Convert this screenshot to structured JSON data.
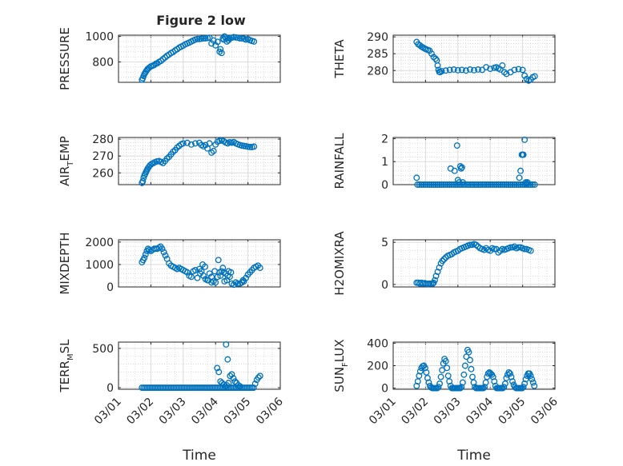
{
  "figure": {
    "title": "Figure 2 low",
    "marker_color": "#0072BD",
    "grid": "on"
  },
  "chart_data": [
    {
      "type": "scatter",
      "ylabel": "PRESSURE",
      "ylim": [
        640,
        1010
      ],
      "yticks": [
        800,
        1000
      ],
      "xlim": [
        0,
        4
      ],
      "xticks": [
        "03/01",
        "03/02",
        "03/03",
        "03/04",
        "03/05",
        "03/06"
      ],
      "xticks_visible": false,
      "minor_grid": true,
      "x": [
        0.58,
        0.6,
        0.62,
        0.64,
        0.66,
        0.68,
        0.7,
        0.72,
        0.76,
        0.8,
        0.84,
        0.88,
        0.92,
        0.96,
        1.0,
        1.05,
        1.1,
        1.15,
        1.2,
        1.25,
        1.3,
        1.35,
        1.4,
        1.45,
        1.5,
        1.55,
        1.6,
        1.65,
        1.7,
        1.75,
        1.8,
        1.85,
        1.9,
        1.95,
        2.0,
        2.05,
        2.1,
        2.15,
        2.2,
        2.25,
        2.3,
        2.35,
        2.4,
        2.45,
        2.5,
        2.52,
        2.55,
        2.58,
        2.6,
        2.62,
        2.65,
        2.68,
        2.7,
        2.72,
        2.75,
        2.8,
        2.85,
        2.9,
        2.95,
        3.0,
        3.05,
        3.1,
        3.15,
        3.2,
        3.25,
        3.3,
        3.35
      ],
      "y": [
        660,
        672,
        690,
        705,
        715,
        725,
        735,
        745,
        755,
        765,
        770,
        775,
        785,
        790,
        800,
        808,
        822,
        835,
        848,
        858,
        870,
        878,
        890,
        900,
        912,
        920,
        928,
        938,
        945,
        952,
        960,
        968,
        975,
        980,
        980,
        982,
        985,
        985,
        988,
        990,
        945,
        968,
        930,
        958,
        880,
        900,
        870,
        985,
        975,
        1000,
        990,
        960,
        985,
        970,
        985,
        990,
        995,
        992,
        990,
        985,
        985,
        982,
        975,
        980,
        970,
        965,
        960
      ]
    },
    {
      "type": "scatter",
      "ylabel": "THETA",
      "ylim": [
        276.5,
        290.5
      ],
      "yticks": [
        280,
        285,
        290
      ],
      "xlim": [
        0,
        4
      ],
      "xticks": [
        "03/01",
        "03/02",
        "03/03",
        "03/04",
        "03/05",
        "03/06"
      ],
      "xticks_visible": false,
      "minor_grid": true,
      "x": [
        0.58,
        0.62,
        0.66,
        0.7,
        0.74,
        0.78,
        0.82,
        0.86,
        0.9,
        0.95,
        1.0,
        1.05,
        1.08,
        1.1,
        1.12,
        1.14,
        1.16,
        1.2,
        1.3,
        1.4,
        1.5,
        1.6,
        1.7,
        1.8,
        1.9,
        2.0,
        2.1,
        2.2,
        2.3,
        2.4,
        2.5,
        2.55,
        2.6,
        2.65,
        2.7,
        2.75,
        2.8,
        2.9,
        3.0,
        3.1,
        3.2,
        3.25,
        3.3,
        3.35,
        3.4,
        3.45,
        3.5
      ],
      "y": [
        288.5,
        287.8,
        287.5,
        287.1,
        286.8,
        286.5,
        286.3,
        286.1,
        285.9,
        285.0,
        284.0,
        283.5,
        283.0,
        281.5,
        280.2,
        279.6,
        279.5,
        279.8,
        280.0,
        280.2,
        280.3,
        280.1,
        280.2,
        280.0,
        280.3,
        280.1,
        280.3,
        280.2,
        281.0,
        280.5,
        280.8,
        281.0,
        280.6,
        280.3,
        281.5,
        279.5,
        279.0,
        279.5,
        280.2,
        280.4,
        280.2,
        278.5,
        277.5,
        277.0,
        277.3,
        278.0,
        278.3
      ]
    },
    {
      "type": "scatter",
      "ylabel": "AIR_TEMP",
      "ylabel_parts": [
        "AIR",
        "T",
        "EMP"
      ],
      "ylim": [
        253,
        281
      ],
      "yticks": [
        260,
        270,
        280
      ],
      "xlim": [
        0,
        4
      ],
      "xticks": [
        "03/01",
        "03/02",
        "03/03",
        "03/04",
        "03/05",
        "03/06"
      ],
      "xticks_visible": false,
      "minor_grid": true,
      "x": [
        0.58,
        0.6,
        0.62,
        0.64,
        0.66,
        0.68,
        0.7,
        0.72,
        0.75,
        0.78,
        0.82,
        0.86,
        0.9,
        0.95,
        1.0,
        1.05,
        1.1,
        1.15,
        1.2,
        1.25,
        1.3,
        1.35,
        1.4,
        1.45,
        1.5,
        1.55,
        1.6,
        1.7,
        1.8,
        1.9,
        2.0,
        2.05,
        2.1,
        2.15,
        2.2,
        2.25,
        2.3,
        2.35,
        2.4,
        2.45,
        2.5,
        2.55,
        2.6,
        2.65,
        2.7,
        2.75,
        2.8,
        2.85,
        2.9,
        2.95,
        3.0,
        3.05,
        3.1,
        3.15,
        3.2,
        3.25,
        3.3,
        3.35
      ],
      "y": [
        254,
        255,
        257,
        258.5,
        259.5,
        260.5,
        261.5,
        262.5,
        263.5,
        264.5,
        265.3,
        265.8,
        266.3,
        266.8,
        267,
        266.5,
        265.8,
        267,
        268.5,
        269.5,
        271,
        272.5,
        273.5,
        275,
        276,
        277,
        277.5,
        277.8,
        276.8,
        277.5,
        277.8,
        276.5,
        275.8,
        276.5,
        274.5,
        277.5,
        272,
        273,
        276.8,
        278.5,
        279,
        279.2,
        278.8,
        278,
        277.5,
        278.2,
        277.9,
        278.3,
        277.5,
        277,
        276.5,
        276.2,
        276,
        275.8,
        275.5,
        275.4,
        275.3,
        275.6
      ]
    },
    {
      "type": "scatter",
      "ylabel": "RAINFALL",
      "ylim": [
        0,
        2.05
      ],
      "yticks": [
        0,
        1,
        2
      ],
      "xlim": [
        0,
        4
      ],
      "xticks": [
        "03/01",
        "03/02",
        "03/03",
        "03/04",
        "03/05",
        "03/06"
      ],
      "xticks_visible": false,
      "minor_grid": true,
      "x": [
        0.58,
        0.6,
        0.65,
        0.7,
        0.75,
        0.8,
        0.85,
        0.9,
        0.95,
        1.0,
        1.05,
        1.1,
        1.15,
        1.2,
        1.25,
        1.3,
        1.35,
        1.4,
        1.45,
        1.5,
        1.55,
        1.6,
        1.65,
        1.7,
        1.75,
        1.8,
        1.85,
        1.9,
        1.95,
        2.0,
        2.05,
        2.1,
        2.15,
        2.2,
        2.25,
        2.3,
        2.35,
        2.4,
        2.45,
        2.5,
        2.55,
        2.6,
        2.65,
        2.7,
        2.75,
        2.8,
        2.85,
        2.9,
        2.95,
        3.0,
        3.05,
        3.1,
        3.15,
        3.2,
        3.25,
        3.3,
        3.35,
        3.4,
        3.45,
        3.5,
        1.42,
        1.52,
        1.6,
        1.63,
        1.66,
        1.68,
        1.7,
        1.72,
        1.58,
        3.12,
        3.15,
        3.18,
        3.2,
        3.22,
        3.25,
        3.28,
        3.3,
        3.32
      ],
      "y": [
        0.3,
        0,
        0,
        0,
        0,
        0,
        0,
        0,
        0,
        0,
        0,
        0,
        0,
        0,
        0,
        0,
        0,
        0,
        0,
        0,
        0,
        0,
        0,
        0,
        0,
        0,
        0,
        0,
        0,
        0,
        0,
        0,
        0,
        0,
        0,
        0,
        0,
        0,
        0,
        0,
        0,
        0,
        0,
        0,
        0,
        0,
        0,
        0,
        0,
        0,
        0,
        0,
        0,
        0,
        0,
        0,
        0,
        0,
        0,
        0,
        0.7,
        0.6,
        0.2,
        0.1,
        0.8,
        0.7,
        0.75,
        0.1,
        1.7,
        0.3,
        0.6,
        1.3,
        1.3,
        1.3,
        1.95,
        0.1,
        0.05,
        0.1
      ]
    },
    {
      "type": "scatter",
      "ylabel": "MIXDEPTH",
      "ylim": [
        0,
        2100
      ],
      "yticks": [
        0,
        1000,
        2000
      ],
      "xlim": [
        0,
        4
      ],
      "xticks": [
        "03/01",
        "03/02",
        "03/03",
        "03/04",
        "03/05",
        "03/06"
      ],
      "xticks_visible": false,
      "minor_grid": true,
      "x": [
        0.58,
        0.61,
        0.64,
        0.67,
        0.7,
        0.73,
        0.76,
        0.8,
        0.84,
        0.88,
        0.92,
        0.96,
        1.0,
        1.04,
        1.08,
        1.12,
        1.16,
        1.2,
        1.25,
        1.3,
        1.35,
        1.4,
        1.45,
        1.5,
        1.55,
        1.6,
        1.65,
        1.7,
        1.75,
        1.8,
        1.85,
        1.9,
        1.95,
        2.0,
        2.05,
        2.1,
        2.15,
        2.2,
        2.25,
        2.3,
        2.35,
        2.4,
        2.45,
        2.5,
        2.55,
        2.6,
        2.65,
        2.7,
        2.75,
        2.8,
        2.85,
        2.9,
        2.95,
        3.0,
        3.05,
        3.1,
        3.15,
        3.2,
        3.25,
        3.3,
        3.35,
        3.4,
        3.45,
        3.5,
        2.02,
        2.08,
        2.14,
        2.22,
        2.3,
        2.38,
        2.47,
        2.52,
        2.58,
        2.62,
        2.68,
        2.72,
        2.78,
        3.08
      ],
      "y": [
        1100,
        1200,
        1300,
        1450,
        1600,
        1700,
        1650,
        1600,
        1650,
        1700,
        1700,
        1700,
        1750,
        1800,
        1700,
        1550,
        1400,
        1250,
        1050,
        950,
        900,
        850,
        800,
        850,
        800,
        750,
        700,
        650,
        500,
        450,
        700,
        750,
        400,
        800,
        700,
        500,
        350,
        300,
        600,
        450,
        250,
        200,
        450,
        650,
        700,
        650,
        600,
        500,
        450,
        150,
        100,
        200,
        150,
        150,
        200,
        250,
        400,
        550,
        650,
        750,
        850,
        900,
        950,
        850,
        600,
        1000,
        900,
        300,
        200,
        700,
        1200,
        500,
        850,
        250,
        300,
        700,
        650,
        300
      ]
    },
    {
      "type": "scatter",
      "ylabel": "H2OMIXRA",
      "ylim": [
        -0.3,
        5.3
      ],
      "yticks": [
        0,
        5
      ],
      "xlim": [
        0,
        4
      ],
      "xticks": [
        "03/01",
        "03/02",
        "03/03",
        "03/04",
        "03/05",
        "03/06"
      ],
      "xticks_visible": false,
      "minor_grid": true,
      "x": [
        0.58,
        0.62,
        0.66,
        0.7,
        0.74,
        0.78,
        0.82,
        0.86,
        0.9,
        0.94,
        0.98,
        1.0,
        1.03,
        1.06,
        1.1,
        1.14,
        1.18,
        1.22,
        1.26,
        1.3,
        1.35,
        1.4,
        1.45,
        1.5,
        1.55,
        1.6,
        1.65,
        1.7,
        1.75,
        1.8,
        1.85,
        1.9,
        1.95,
        2.0,
        2.05,
        2.1,
        2.15,
        2.2,
        2.25,
        2.3,
        2.35,
        2.4,
        2.45,
        2.5,
        2.55,
        2.6,
        2.65,
        2.7,
        2.75,
        2.8,
        2.85,
        2.9,
        2.95,
        3.0,
        3.05,
        3.1,
        3.15,
        3.2,
        3.25,
        3.3,
        3.35,
        3.4
      ],
      "y": [
        0.2,
        0.2,
        0.1,
        0.2,
        0.1,
        0.15,
        0.1,
        0.05,
        0.1,
        0.1,
        0.1,
        0.2,
        0.5,
        1.0,
        1.5,
        2.0,
        2.5,
        2.8,
        3.0,
        3.2,
        3.4,
        3.5,
        3.6,
        3.8,
        3.9,
        4.0,
        4.2,
        4.3,
        4.4,
        4.5,
        4.6,
        4.7,
        4.7,
        4.8,
        4.7,
        4.5,
        4.3,
        4.2,
        4.1,
        4.3,
        4.1,
        4.0,
        4.3,
        4.2,
        4.2,
        3.8,
        4.0,
        4.2,
        4.1,
        4.2,
        4.3,
        4.4,
        4.4,
        4.5,
        4.3,
        4.4,
        4.4,
        4.3,
        4.2,
        4.2,
        4.1,
        4.0
      ]
    },
    {
      "type": "scatter",
      "ylabel": "TERR_MSL",
      "ylabel_parts": [
        "TERR",
        "M",
        "SL"
      ],
      "ylim": [
        -20,
        580
      ],
      "yticks": [
        0,
        500
      ],
      "xlim": [
        0,
        4
      ],
      "xticks": [
        "03/01",
        "03/02",
        "03/03",
        "03/04",
        "03/05",
        "03/06"
      ],
      "xticks_visible": true,
      "xlabel": "Time",
      "minor_grid": true,
      "x": [
        0.58,
        0.62,
        0.66,
        0.7,
        0.74,
        0.78,
        0.82,
        0.86,
        0.9,
        0.94,
        0.98,
        1.02,
        1.06,
        1.1,
        1.14,
        1.18,
        1.22,
        1.26,
        1.3,
        1.34,
        1.38,
        1.42,
        1.46,
        1.5,
        1.54,
        1.58,
        1.62,
        1.66,
        1.7,
        1.74,
        1.78,
        1.82,
        1.86,
        1.9,
        1.94,
        1.98,
        2.02,
        2.06,
        2.1,
        2.14,
        2.18,
        2.22,
        2.26,
        2.3,
        2.34,
        2.38,
        2.42,
        2.46,
        2.5,
        2.54,
        2.58,
        2.62,
        2.66,
        2.7,
        2.74,
        2.78,
        2.82,
        2.86,
        2.9,
        2.94,
        2.98,
        3.02,
        3.06,
        3.1,
        3.14,
        3.18,
        3.22,
        3.26,
        3.3,
        3.34,
        3.38,
        3.42,
        3.46,
        3.5,
        2.52,
        2.56,
        2.6,
        2.64,
        2.68,
        2.72,
        2.76,
        2.8,
        2.84,
        2.88,
        2.92,
        2.96,
        3.0,
        2.44,
        2.48,
        2.66,
        2.7
      ],
      "y": [
        0,
        0,
        0,
        0,
        0,
        0,
        0,
        0,
        0,
        0,
        0,
        0,
        0,
        0,
        0,
        0,
        0,
        0,
        0,
        0,
        0,
        0,
        0,
        0,
        0,
        0,
        0,
        0,
        0,
        0,
        0,
        0,
        0,
        0,
        0,
        0,
        0,
        0,
        0,
        0,
        0,
        0,
        0,
        0,
        0,
        0,
        0,
        0,
        0,
        0,
        0,
        0,
        0,
        0,
        0,
        0,
        0,
        0,
        0,
        0,
        0,
        0,
        0,
        0,
        0,
        0,
        0,
        0,
        0,
        0,
        50,
        100,
        130,
        150,
        80,
        60,
        40,
        20,
        30,
        60,
        150,
        170,
        120,
        80,
        60,
        30,
        20,
        250,
        200,
        550,
        360
      ]
    },
    {
      "type": "scatter",
      "ylabel": "SUN_FLUX",
      "ylabel_parts": [
        "SUN",
        "F",
        "LUX"
      ],
      "ylim": [
        -10,
        410
      ],
      "yticks": [
        0,
        200,
        400
      ],
      "xlim": [
        0,
        4
      ],
      "xticks": [
        "03/01",
        "03/02",
        "03/03",
        "03/04",
        "03/05",
        "03/06"
      ],
      "xticks_visible": true,
      "xlabel": "Time",
      "minor_grid": true,
      "x": [
        0.58,
        0.61,
        0.64,
        0.67,
        0.7,
        0.73,
        0.76,
        0.79,
        0.82,
        0.85,
        0.88,
        0.91,
        0.94,
        0.97,
        1.0,
        1.03,
        1.06,
        1.09,
        1.12,
        1.15,
        1.18,
        1.21,
        1.24,
        1.27,
        1.3,
        1.33,
        1.36,
        1.39,
        1.42,
        1.45,
        1.48,
        1.51,
        1.54,
        1.57,
        1.6,
        1.63,
        1.66,
        1.69,
        1.72,
        1.75,
        1.78,
        1.81,
        1.84,
        1.87,
        1.9,
        1.93,
        1.96,
        1.99,
        2.02,
        2.05,
        2.08,
        2.11,
        2.14,
        2.17,
        2.2,
        2.23,
        2.26,
        2.29,
        2.32,
        2.35,
        2.38,
        2.41,
        2.44,
        2.47,
        2.5,
        2.53,
        2.56,
        2.59,
        2.62,
        2.65,
        2.68,
        2.71,
        2.74,
        2.77,
        2.8,
        2.83,
        2.86,
        2.89,
        2.92,
        2.95,
        2.98,
        3.01,
        3.04,
        3.07,
        3.1,
        3.13,
        3.16,
        3.19,
        3.22,
        3.25,
        3.28,
        3.31,
        3.34,
        3.37,
        3.4,
        3.43,
        3.46,
        3.49
      ],
      "y": [
        20,
        60,
        110,
        150,
        180,
        195,
        200,
        180,
        140,
        90,
        50,
        20,
        5,
        0,
        0,
        0,
        0,
        0,
        10,
        40,
        100,
        160,
        220,
        260,
        240,
        180,
        110,
        60,
        20,
        0,
        0,
        0,
        0,
        0,
        0,
        0,
        0,
        10,
        50,
        120,
        200,
        280,
        340,
        320,
        250,
        170,
        100,
        50,
        10,
        0,
        0,
        0,
        0,
        0,
        0,
        0,
        10,
        50,
        100,
        130,
        140,
        130,
        120,
        100,
        60,
        20,
        0,
        0,
        0,
        0,
        0,
        0,
        10,
        40,
        90,
        120,
        140,
        130,
        100,
        60,
        30,
        10,
        0,
        0,
        0,
        0,
        0,
        0,
        10,
        40,
        80,
        110,
        130,
        130,
        110,
        80,
        50,
        20
      ]
    }
  ]
}
